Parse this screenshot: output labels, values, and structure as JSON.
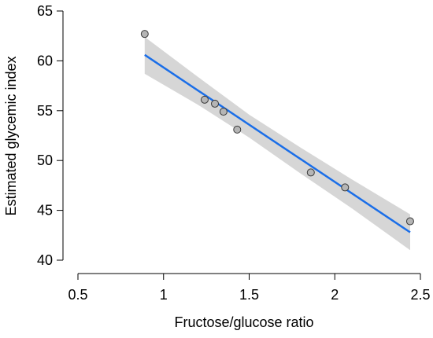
{
  "chart_data": {
    "type": "scatter",
    "title": "",
    "xlabel": "Fructose/glucose ratio",
    "ylabel": "Estimated glycemic index",
    "xlim": [
      0.5,
      2.5
    ],
    "ylim": [
      40,
      65
    ],
    "xticks": [
      "0.5",
      "1",
      "1.5",
      "2",
      "2.5"
    ],
    "yticks": [
      "40",
      "45",
      "50",
      "55",
      "60",
      "65"
    ],
    "grid": false,
    "legend": "none",
    "points": [
      {
        "x": 0.89,
        "y": 62.7
      },
      {
        "x": 1.24,
        "y": 56.1
      },
      {
        "x": 1.3,
        "y": 55.7
      },
      {
        "x": 1.35,
        "y": 54.9
      },
      {
        "x": 1.43,
        "y": 53.1
      },
      {
        "x": 1.86,
        "y": 48.8
      },
      {
        "x": 2.06,
        "y": 47.3
      },
      {
        "x": 2.44,
        "y": 43.9
      }
    ],
    "fit_line": {
      "x": [
        0.89,
        2.44
      ],
      "y": [
        60.6,
        42.8
      ]
    },
    "confidence_band": {
      "x": [
        0.89,
        1.2,
        1.5,
        1.8,
        2.1,
        2.44
      ],
      "lower": [
        58.7,
        55.6,
        52.3,
        48.7,
        45.2,
        41.0
      ],
      "upper": [
        62.4,
        58.4,
        54.6,
        51.3,
        48.1,
        44.6
      ]
    },
    "colors": {
      "line": "#1a6ee8",
      "band": "#d6d6d6",
      "point_fill": "#b5b5b5",
      "point_stroke": "#3a3a3a",
      "axis": "#000000"
    }
  }
}
